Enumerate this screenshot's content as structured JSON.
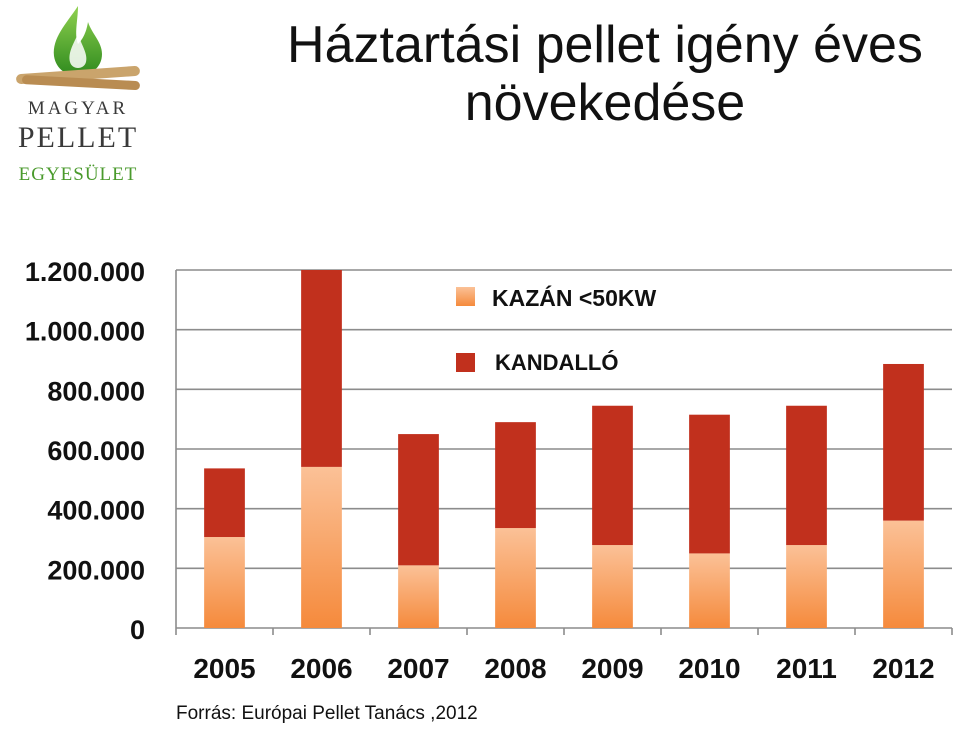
{
  "logo": {
    "line1": "MAGYAR",
    "line2": "PELLET",
    "line3": "EGYESÜLET",
    "icon": "flame-leaf-icon"
  },
  "title": "Háztartási pellet igény éves növekedése",
  "source": "Forrás: Európai Pellet Tanács ,2012",
  "colors": {
    "kazan": "#f58a3c",
    "kazan_light": "#fbc197",
    "kandallo": "#c1301d",
    "grid": "#8c8c8c",
    "axis": "#8c8c8c"
  },
  "chart_data": {
    "type": "bar",
    "stacked": true,
    "categories": [
      "2005",
      "2006",
      "2007",
      "2008",
      "2009",
      "2010",
      "2011",
      "2012"
    ],
    "series": [
      {
        "name": "KAZÁN <50KW",
        "values": [
          305000,
          540000,
          210000,
          335000,
          278000,
          250000,
          278000,
          360000
        ]
      },
      {
        "name": "KANDALLÓ",
        "values": [
          230000,
          660000,
          440000,
          355000,
          467000,
          465000,
          467000,
          525000
        ]
      }
    ],
    "ylim": [
      0,
      1200000
    ],
    "yticks": [
      0,
      200000,
      400000,
      600000,
      800000,
      1000000,
      1200000
    ],
    "ytick_labels": [
      "0",
      "200.000",
      "400.000",
      "600.000",
      "800.000",
      "1.000.000",
      "1.200.000"
    ],
    "grid": true,
    "legend_position": "top-center",
    "xlabel": "",
    "ylabel": ""
  }
}
